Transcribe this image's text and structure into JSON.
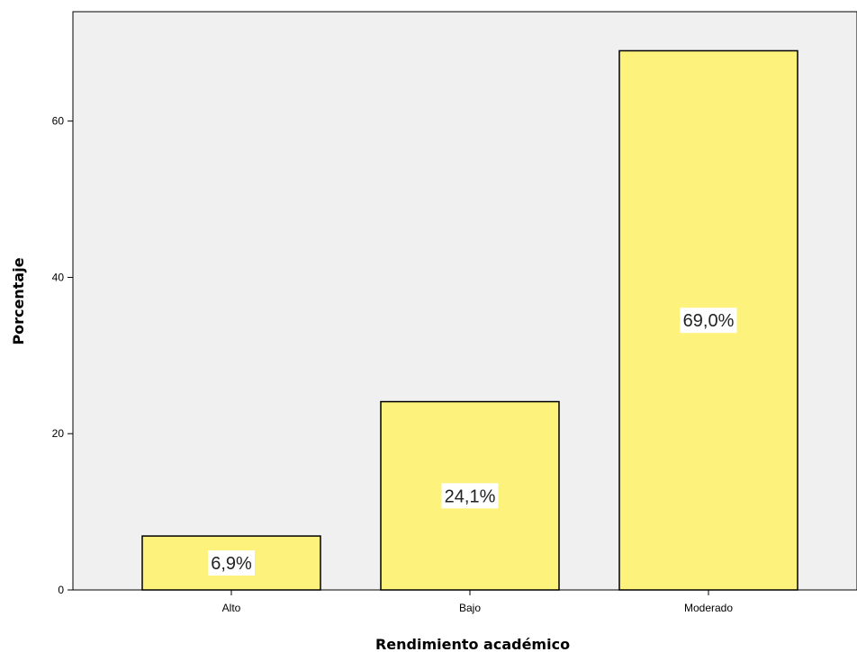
{
  "chart_data": {
    "type": "bar",
    "categories": [
      "Alto",
      "Bajo",
      "Moderado"
    ],
    "values": [
      6.9,
      24.1,
      69.0
    ],
    "data_labels": [
      "6,9%",
      "24,1%",
      "69,0%"
    ],
    "title": "",
    "xlabel": "Rendimiento académico",
    "ylabel": "Porcentaje",
    "ylim": [
      0,
      74
    ],
    "yticks": [
      0,
      20,
      40,
      60
    ],
    "ytick_labels": [
      "0",
      "20",
      "40",
      "60"
    ],
    "grid": false,
    "colors": {
      "plot_background": "#f0f0f0",
      "bar_fill": "#fdf27b",
      "bar_stroke": "#000000",
      "label_background": "#ffffff"
    }
  }
}
